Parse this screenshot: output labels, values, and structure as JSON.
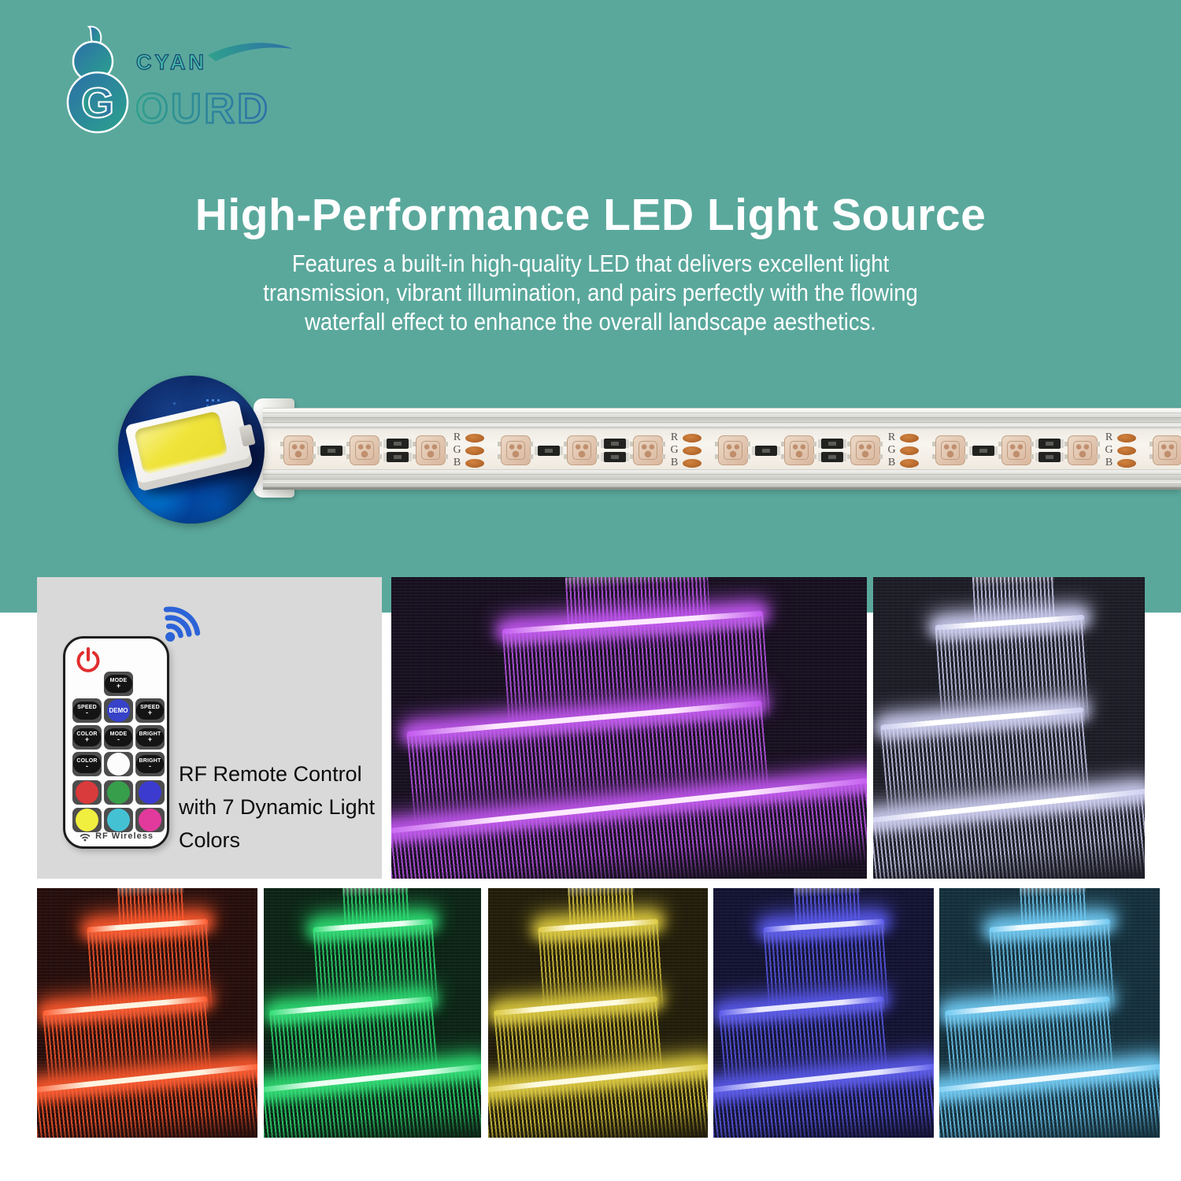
{
  "colors": {
    "hero_background": "#5aa89c",
    "panel_background": "#d9d9d9",
    "page_background": "#ffffff",
    "logo_teal": "#2fa08c",
    "logo_blue": "#2d6fa8",
    "wifi_blue": "#2d63d8",
    "power_red": "#e02e2e"
  },
  "logo": {
    "monogram": "G",
    "word_top": "CYAN",
    "word_bottom": "OURD"
  },
  "hero": {
    "title": "High-Performance LED Light Source",
    "description_lines": [
      "Features a built-in high-quality LED that delivers excellent light",
      "transmission, vibrant illumination, and pairs perfectly with the flowing",
      "waterfall effect to enhance the overall landscape aesthetics."
    ]
  },
  "led_strip": {
    "pad_labels": [
      "R",
      "G",
      "B"
    ],
    "module_repeats": 5
  },
  "remote_panel": {
    "caption_lines": [
      "RF Remote Control",
      "with 7 Dynamic Light Colors"
    ],
    "remote": {
      "footer_label": "RF Wireless",
      "buttons": {
        "mode_plus": {
          "text": "MODE",
          "sign": "+"
        },
        "speed_minus": {
          "text": "SPEED",
          "sign": "-"
        },
        "demo": {
          "text": "DEMO"
        },
        "speed_plus": {
          "text": "SPEED",
          "sign": "+"
        },
        "color_plus": {
          "text": "COLOR",
          "sign": "+"
        },
        "mode_minus": {
          "text": "MODE",
          "sign": "-"
        },
        "bright_plus": {
          "text": "BRIGHT",
          "sign": "+"
        },
        "color_minus": {
          "text": "COLOR",
          "sign": "-"
        },
        "bright_minus": {
          "text": "BRIGHT",
          "sign": "-"
        }
      },
      "color_buttons": [
        "#d93a3c",
        "#379e4b",
        "#3b3bd0",
        "#f0ee3e",
        "#45c1d4",
        "#e23a9c"
      ]
    }
  },
  "photos": [
    {
      "name": "purple",
      "tint": "#c257f0",
      "core": "#ffe9ff",
      "bg": "#171020"
    },
    {
      "name": "white",
      "tint": "#cdcdf0",
      "core": "#ffffff",
      "bg": "#1d1d27"
    },
    {
      "name": "red",
      "tint": "#ff5a2e",
      "core": "#fff3e0",
      "bg": "#260e0c"
    },
    {
      "name": "green",
      "tint": "#2ede74",
      "core": "#ecfff3",
      "bg": "#0c2415"
    },
    {
      "name": "yellow",
      "tint": "#dcc93e",
      "core": "#fffbe0",
      "bg": "#221d0b"
    },
    {
      "name": "blue",
      "tint": "#5a5aec",
      "core": "#e8e8ff",
      "bg": "#131332"
    },
    {
      "name": "cyan",
      "tint": "#6fc9f2",
      "core": "#eefaff",
      "bg": "#15303c"
    }
  ]
}
